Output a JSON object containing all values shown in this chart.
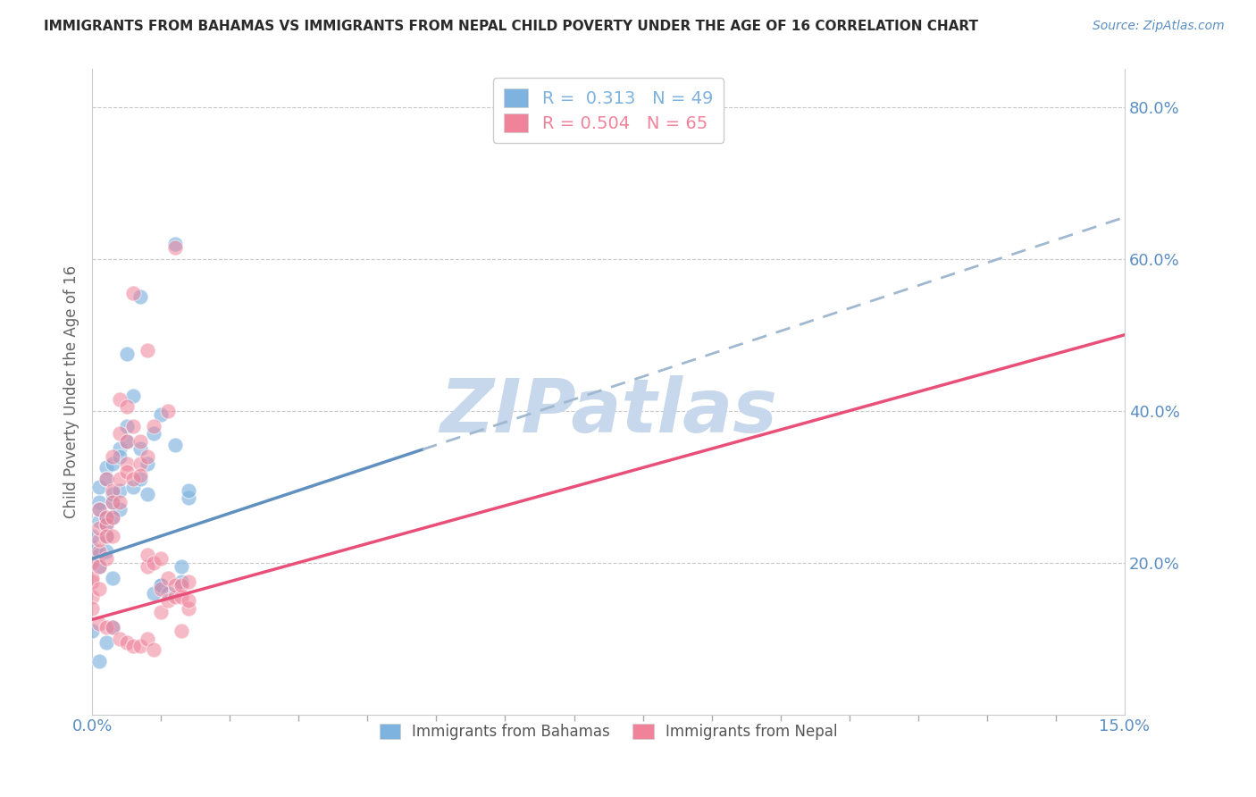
{
  "title": "IMMIGRANTS FROM BAHAMAS VS IMMIGRANTS FROM NEPAL CHILD POVERTY UNDER THE AGE OF 16 CORRELATION CHART",
  "source_text": "Source: ZipAtlas.com",
  "ylabel": "Child Poverty Under the Age of 16",
  "xlim": [
    0.0,
    0.15
  ],
  "ylim": [
    0.0,
    0.85
  ],
  "yticks": [
    0.0,
    0.2,
    0.4,
    0.6,
    0.8
  ],
  "yticklabels": [
    "",
    "20.0%",
    "40.0%",
    "60.0%",
    "80.0%"
  ],
  "grid_color": "#c8c8c8",
  "background_color": "#ffffff",
  "watermark": "ZIPatlas",
  "watermark_color": "#c8d8ec",
  "legend_R_bahamas": "0.313",
  "legend_N_bahamas": "49",
  "legend_R_nepal": "0.504",
  "legend_N_nepal": "65",
  "bahamas_color": "#7eb3e0",
  "nepal_color": "#f0829a",
  "bahamas_line_color": "#6090c0",
  "nepal_line_color": "#e8507a",
  "bahamas_line_dashed_color": "#a0b8d0",
  "bahamas_line": [
    [
      0.0,
      0.205
    ],
    [
      0.15,
      0.655
    ]
  ],
  "nepal_line": [
    [
      0.0,
      0.125
    ],
    [
      0.15,
      0.5
    ]
  ],
  "bahamas_scatter": [
    [
      0.0,
      0.22
    ],
    [
      0.0,
      0.235
    ],
    [
      0.001,
      0.28
    ],
    [
      0.001,
      0.255
    ],
    [
      0.001,
      0.195
    ],
    [
      0.001,
      0.21
    ],
    [
      0.001,
      0.3
    ],
    [
      0.001,
      0.27
    ],
    [
      0.002,
      0.26
    ],
    [
      0.002,
      0.235
    ],
    [
      0.002,
      0.25
    ],
    [
      0.002,
      0.215
    ],
    [
      0.002,
      0.325
    ],
    [
      0.002,
      0.31
    ],
    [
      0.003,
      0.28
    ],
    [
      0.003,
      0.29
    ],
    [
      0.003,
      0.33
    ],
    [
      0.003,
      0.26
    ],
    [
      0.003,
      0.18
    ],
    [
      0.004,
      0.35
    ],
    [
      0.004,
      0.295
    ],
    [
      0.004,
      0.27
    ],
    [
      0.004,
      0.34
    ],
    [
      0.005,
      0.475
    ],
    [
      0.005,
      0.38
    ],
    [
      0.005,
      0.36
    ],
    [
      0.006,
      0.3
    ],
    [
      0.006,
      0.42
    ],
    [
      0.007,
      0.55
    ],
    [
      0.007,
      0.31
    ],
    [
      0.007,
      0.35
    ],
    [
      0.008,
      0.33
    ],
    [
      0.008,
      0.29
    ],
    [
      0.009,
      0.37
    ],
    [
      0.009,
      0.16
    ],
    [
      0.01,
      0.395
    ],
    [
      0.01,
      0.17
    ],
    [
      0.01,
      0.17
    ],
    [
      0.011,
      0.16
    ],
    [
      0.012,
      0.62
    ],
    [
      0.012,
      0.355
    ],
    [
      0.013,
      0.175
    ],
    [
      0.013,
      0.195
    ],
    [
      0.014,
      0.285
    ],
    [
      0.014,
      0.295
    ],
    [
      0.0,
      0.11
    ],
    [
      0.001,
      0.07
    ],
    [
      0.003,
      0.115
    ],
    [
      0.002,
      0.095
    ]
  ],
  "nepal_scatter": [
    [
      0.0,
      0.155
    ],
    [
      0.0,
      0.175
    ],
    [
      0.0,
      0.14
    ],
    [
      0.0,
      0.2
    ],
    [
      0.0,
      0.18
    ],
    [
      0.001,
      0.215
    ],
    [
      0.001,
      0.23
    ],
    [
      0.001,
      0.195
    ],
    [
      0.001,
      0.165
    ],
    [
      0.001,
      0.245
    ],
    [
      0.001,
      0.27
    ],
    [
      0.002,
      0.25
    ],
    [
      0.002,
      0.235
    ],
    [
      0.002,
      0.205
    ],
    [
      0.002,
      0.31
    ],
    [
      0.002,
      0.26
    ],
    [
      0.003,
      0.295
    ],
    [
      0.003,
      0.235
    ],
    [
      0.003,
      0.34
    ],
    [
      0.003,
      0.28
    ],
    [
      0.003,
      0.26
    ],
    [
      0.004,
      0.31
    ],
    [
      0.004,
      0.37
    ],
    [
      0.004,
      0.28
    ],
    [
      0.004,
      0.415
    ],
    [
      0.005,
      0.33
    ],
    [
      0.005,
      0.36
    ],
    [
      0.005,
      0.405
    ],
    [
      0.005,
      0.32
    ],
    [
      0.006,
      0.555
    ],
    [
      0.006,
      0.31
    ],
    [
      0.006,
      0.38
    ],
    [
      0.007,
      0.33
    ],
    [
      0.007,
      0.315
    ],
    [
      0.007,
      0.36
    ],
    [
      0.008,
      0.34
    ],
    [
      0.008,
      0.195
    ],
    [
      0.008,
      0.21
    ],
    [
      0.008,
      0.48
    ],
    [
      0.009,
      0.38
    ],
    [
      0.009,
      0.2
    ],
    [
      0.01,
      0.205
    ],
    [
      0.01,
      0.135
    ],
    [
      0.01,
      0.165
    ],
    [
      0.011,
      0.4
    ],
    [
      0.011,
      0.18
    ],
    [
      0.011,
      0.15
    ],
    [
      0.012,
      0.615
    ],
    [
      0.012,
      0.155
    ],
    [
      0.012,
      0.17
    ],
    [
      0.013,
      0.11
    ],
    [
      0.013,
      0.155
    ],
    [
      0.013,
      0.17
    ],
    [
      0.014,
      0.14
    ],
    [
      0.014,
      0.175
    ],
    [
      0.014,
      0.15
    ],
    [
      0.001,
      0.12
    ],
    [
      0.002,
      0.115
    ],
    [
      0.003,
      0.115
    ],
    [
      0.004,
      0.1
    ],
    [
      0.005,
      0.095
    ],
    [
      0.006,
      0.09
    ],
    [
      0.007,
      0.09
    ],
    [
      0.008,
      0.1
    ],
    [
      0.009,
      0.085
    ]
  ]
}
